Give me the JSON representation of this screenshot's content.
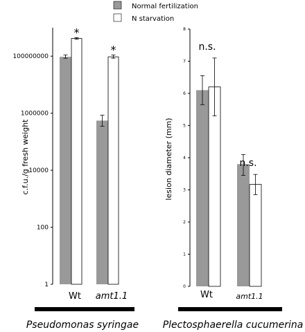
{
  "legend": {
    "items": [
      {
        "label": "Normal fertilization",
        "color": "#999999"
      },
      {
        "label": "N starvation",
        "color": "#ffffff"
      }
    ]
  },
  "chart_data": [
    {
      "type": "bar",
      "scale": "log",
      "categories": [
        "Wt",
        "amt1.1"
      ],
      "category_italic": [
        false,
        true
      ],
      "ylabel": "c.f.u./g fresh weight",
      "ylim": [
        1,
        1000000000
      ],
      "yticks": [
        1,
        100,
        10000,
        1000000,
        100000000
      ],
      "ytick_labels": [
        "1",
        "100",
        "10000",
        "1000000",
        "100000000"
      ],
      "series": [
        {
          "name": "Normal fertilization",
          "color": "#999999",
          "values": [
            95000000,
            550000
          ],
          "err_low": [
            85000000,
            350000
          ],
          "err_high": [
            110000000,
            850000
          ]
        },
        {
          "name": "N starvation",
          "color": "#ffffff",
          "values": [
            420000000,
            95000000
          ],
          "err_low": [
            390000000,
            85000000
          ],
          "err_high": [
            450000000,
            110000000
          ]
        }
      ],
      "annotations": [
        {
          "category": 0,
          "series": 1,
          "text": "*"
        },
        {
          "category": 1,
          "series": 1,
          "text": "*"
        }
      ],
      "caption": "Pseudomonas syringae",
      "grid": false
    },
    {
      "type": "bar",
      "scale": "linear",
      "categories": [
        "Wt",
        "amt1.1"
      ],
      "category_italic": [
        false,
        true
      ],
      "ylabel": "lesion diameter (mm)",
      "ylim": [
        0,
        8
      ],
      "yticks": [
        0,
        1,
        2,
        3,
        4,
        5,
        6,
        7,
        8
      ],
      "ytick_labels": [
        "0",
        "1",
        "2",
        "3",
        "4",
        "5",
        "6",
        "7",
        "8"
      ],
      "series": [
        {
          "name": "Normal fertilization",
          "color": "#999999",
          "values": [
            6.1,
            3.8
          ],
          "err_low": [
            5.65,
            3.45
          ],
          "err_high": [
            6.55,
            4.1
          ]
        },
        {
          "name": "N starvation",
          "color": "#ffffff",
          "values": [
            6.2,
            3.17
          ],
          "err_low": [
            5.3,
            2.85
          ],
          "err_high": [
            7.1,
            3.48
          ]
        }
      ],
      "annotations": [
        {
          "category": 0,
          "series": 1,
          "text": "n.s."
        },
        {
          "category": 1,
          "series": 1,
          "text": "n.s."
        }
      ],
      "caption": "Plectosphaerella cucumerina",
      "grid": false
    }
  ]
}
